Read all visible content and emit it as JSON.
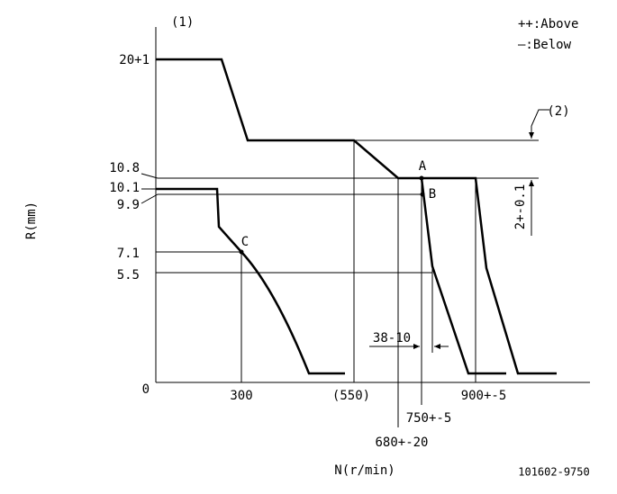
{
  "diagram": {
    "corner_label": "(1)",
    "legend": {
      "above": "++:Above",
      "below": "—:Below"
    },
    "y_axis": {
      "title": "R(mm)",
      "labels": [
        "20+1",
        "10.8",
        "10.1",
        "9.9",
        "7.1",
        "5.5",
        "0"
      ]
    },
    "x_axis": {
      "title": "N(r/min)",
      "labels": [
        "300",
        "(550)",
        "900+-5",
        "750+-5",
        "680+-20"
      ]
    },
    "dimensions": {
      "range_label": "(2)",
      "range_value": "2+-0.1",
      "offset": "38-10"
    },
    "points": [
      "A",
      "B",
      "C"
    ],
    "part_number": "101602-9750"
  }
}
